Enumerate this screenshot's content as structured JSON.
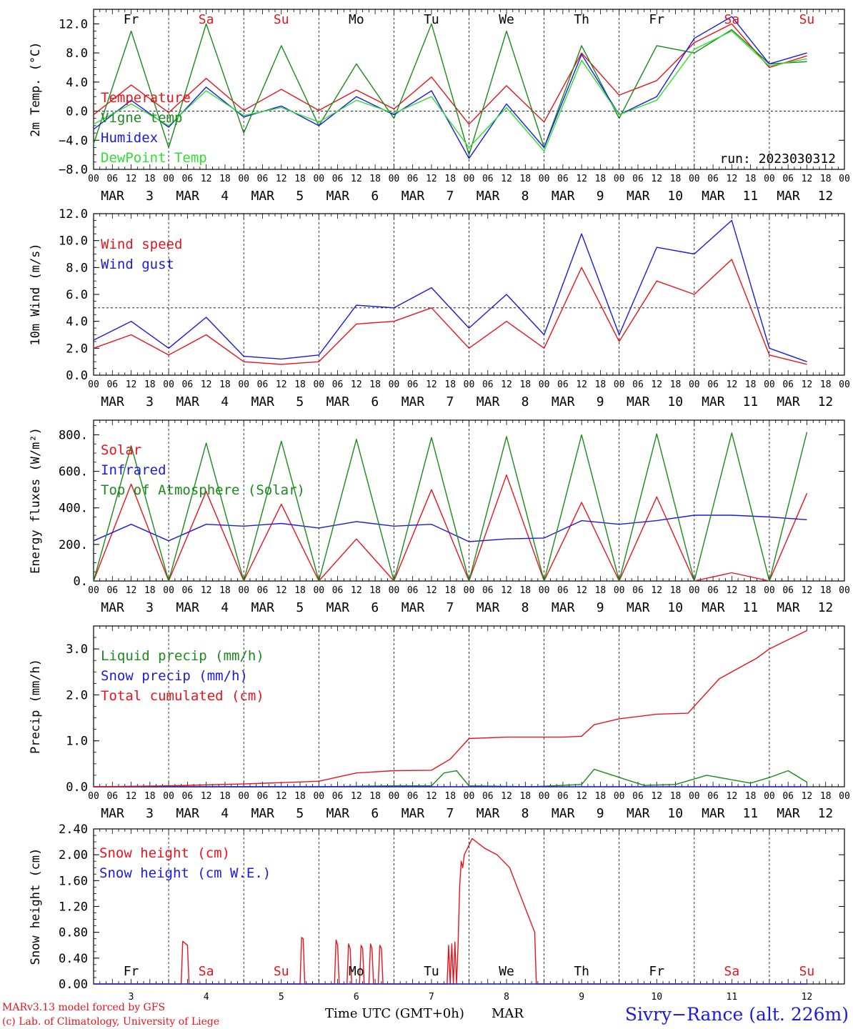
{
  "colors": {
    "red": "#e8141c",
    "green": "#1a8a1a",
    "blue": "#1a1ae0",
    "light_green": "#30e030",
    "black": "#000000",
    "weekend": "#e8141c",
    "weekday": "#000000"
  },
  "days": [
    "3",
    "4",
    "5",
    "6",
    "7",
    "8",
    "9",
    "10",
    "11",
    "12"
  ],
  "month": "MAR",
  "hour_ticks": [
    "00",
    "06",
    "12",
    "18"
  ],
  "hour_end": "00",
  "weekday_labels": [
    {
      "label": "Fr",
      "weekend": false
    },
    {
      "label": "Sa",
      "weekend": true
    },
    {
      "label": "Su",
      "weekend": true
    },
    {
      "label": "Mo",
      "weekend": false
    },
    {
      "label": "Tu",
      "weekend": false
    },
    {
      "label": "We",
      "weekend": false
    },
    {
      "label": "Th",
      "weekend": false
    },
    {
      "label": "Fr",
      "weekend": false
    },
    {
      "label": "Sa",
      "weekend": true
    },
    {
      "label": "Su",
      "weekend": true
    }
  ],
  "footer": {
    "credit1": "MARv3.13 model forced by GFS",
    "credit2": "(c) Lab. of Climatology, University of Liege",
    "xlabel": "Time UTC (GMT+0h)",
    "xmonth": "MAR",
    "station": "Sivry−Rance (alt. 226m)"
  },
  "chart_data": [
    {
      "type": "line",
      "ylabel": "2m Temp. (°C)",
      "ylim": [
        -8,
        14
      ],
      "yticks": [
        "12.0",
        "8.0",
        "4.0",
        "0.0",
        "−4.0",
        "−8.0"
      ],
      "ytick_values": [
        12,
        8,
        4,
        0,
        -4,
        -8
      ],
      "dashed_y": 0,
      "annotation": "run: 2023030312",
      "series": [
        {
          "name": "Temperature",
          "color": "red",
          "x": [
            0,
            12,
            24,
            36,
            48,
            60,
            72,
            84,
            96,
            108,
            120,
            132,
            144,
            156,
            168,
            180,
            192,
            204,
            216,
            228
          ],
          "values": [
            -0.5,
            3.6,
            -0.2,
            4.5,
            0.1,
            3.0,
            0.1,
            2.9,
            0.3,
            4.7,
            -1.8,
            3.5,
            -1.5,
            8.0,
            2.2,
            4.2,
            9.4,
            12.0,
            6.0,
            7.6
          ]
        },
        {
          "name": "Vigne temp",
          "color": "green",
          "x": [
            0,
            12,
            24,
            36,
            48,
            60,
            72,
            84,
            96,
            108,
            120,
            132,
            144,
            156,
            168,
            180,
            192,
            204,
            216,
            228
          ],
          "values": [
            -4.5,
            11.0,
            -5.0,
            12.0,
            -3.0,
            9.0,
            -2.0,
            6.5,
            -1.0,
            12.0,
            -6.0,
            11.0,
            -5.0,
            9.0,
            -1.0,
            9.0,
            8.0,
            11.2,
            6.5,
            6.8
          ]
        },
        {
          "name": "Humidex",
          "color": "blue",
          "x": [
            0,
            12,
            24,
            36,
            48,
            60,
            72,
            84,
            96,
            108,
            120,
            132,
            144,
            156,
            168,
            180,
            192,
            204,
            216,
            228
          ],
          "values": [
            -2.5,
            1.5,
            -2.2,
            3.3,
            -0.8,
            0.7,
            -2.0,
            2.0,
            -0.5,
            2.8,
            -6.5,
            1.0,
            -5.0,
            7.8,
            -0.5,
            2.0,
            10.0,
            13.0,
            6.5,
            8.0
          ]
        },
        {
          "name": "DewPoint Temp",
          "color": "light_green",
          "x": [
            0,
            12,
            24,
            36,
            48,
            60,
            72,
            84,
            96,
            108,
            120,
            132,
            144,
            156,
            168,
            180,
            192,
            204,
            216,
            228
          ],
          "values": [
            -1.8,
            1.0,
            -2.0,
            2.8,
            -0.6,
            0.5,
            -1.5,
            1.5,
            -0.3,
            2.0,
            -5.0,
            0.5,
            -5.5,
            7.0,
            -0.5,
            1.5,
            8.5,
            11.0,
            6.2,
            7.2
          ]
        }
      ]
    },
    {
      "type": "line",
      "ylabel": "10m Wind (m/s)",
      "ylim": [
        0,
        12
      ],
      "yticks": [
        "12.0",
        "10.0",
        "8.0",
        "6.0",
        "4.0",
        "2.0",
        "0.0"
      ],
      "ytick_values": [
        12,
        10,
        8,
        6,
        4,
        2,
        0
      ],
      "dashed_y": 5,
      "series": [
        {
          "name": "Wind speed",
          "color": "red",
          "x": [
            0,
            12,
            24,
            36,
            48,
            60,
            72,
            84,
            96,
            108,
            120,
            132,
            144,
            156,
            168,
            180,
            192,
            204,
            216,
            228
          ],
          "values": [
            2.0,
            3.0,
            1.5,
            3.0,
            1.0,
            0.8,
            1.0,
            3.8,
            4.0,
            5.0,
            2.0,
            4.0,
            2.0,
            8.0,
            2.5,
            7.0,
            6.0,
            8.6,
            1.5,
            0.8
          ]
        },
        {
          "name": "Wind gust",
          "color": "blue",
          "x": [
            0,
            12,
            24,
            36,
            48,
            60,
            72,
            84,
            96,
            108,
            120,
            132,
            144,
            156,
            168,
            180,
            192,
            204,
            216,
            228
          ],
          "values": [
            2.6,
            4.0,
            2.0,
            4.3,
            1.4,
            1.2,
            1.5,
            5.2,
            5.0,
            6.5,
            3.5,
            6.0,
            3.0,
            10.5,
            3.0,
            9.5,
            9.0,
            11.5,
            2.0,
            1.0
          ]
        }
      ]
    },
    {
      "type": "line",
      "ylabel": "Energy fluxes (W/m²)",
      "ylim": [
        0,
        880
      ],
      "yticks": [
        "800.",
        "600.",
        "400.",
        "200.",
        "0."
      ],
      "ytick_values": [
        800,
        600,
        400,
        200,
        0
      ],
      "series": [
        {
          "name": "Solar",
          "color": "red",
          "x": [
            0,
            12,
            24,
            36,
            48,
            60,
            72,
            84,
            96,
            108,
            120,
            132,
            144,
            156,
            168,
            180,
            192,
            204,
            216,
            228
          ],
          "values": [
            0,
            530,
            0,
            490,
            0,
            420,
            0,
            230,
            0,
            500,
            0,
            580,
            0,
            430,
            0,
            460,
            0,
            45,
            0,
            480
          ]
        },
        {
          "name": "Infrared",
          "color": "blue",
          "x": [
            0,
            12,
            24,
            36,
            48,
            60,
            72,
            84,
            96,
            108,
            120,
            132,
            144,
            156,
            168,
            180,
            192,
            204,
            216,
            228
          ],
          "values": [
            220,
            310,
            220,
            310,
            300,
            315,
            290,
            325,
            300,
            310,
            215,
            230,
            235,
            330,
            310,
            330,
            360,
            360,
            350,
            335
          ]
        },
        {
          "name": "Top of Atmosphere (Solar)",
          "color": "green",
          "x": [
            0,
            12,
            24,
            36,
            48,
            60,
            72,
            84,
            96,
            108,
            120,
            132,
            144,
            156,
            168,
            180,
            192,
            204,
            216,
            228
          ],
          "values": [
            0,
            740,
            0,
            755,
            0,
            765,
            0,
            775,
            0,
            785,
            0,
            790,
            0,
            800,
            0,
            805,
            0,
            810,
            0,
            815
          ]
        }
      ]
    },
    {
      "type": "line",
      "ylabel": "Precip (mm/h)",
      "ylim": [
        0,
        3.5
      ],
      "yticks": [
        "3.0",
        "2.0",
        "1.0",
        "0.0"
      ],
      "ytick_values": [
        3,
        2,
        1,
        0
      ],
      "series": [
        {
          "name": "Liquid precip (mm/h)",
          "color": "green",
          "x": [
            0,
            24,
            48,
            72,
            96,
            108,
            112,
            116,
            120,
            140,
            156,
            160,
            176,
            186,
            196,
            210,
            216,
            222,
            228
          ],
          "values": [
            0,
            0,
            0,
            0,
            0.02,
            0.02,
            0.3,
            0.35,
            0.02,
            0,
            0.05,
            0.38,
            0.03,
            0.05,
            0.25,
            0.08,
            0.2,
            0.35,
            0.1
          ]
        },
        {
          "name": "Snow precip (mm/h)",
          "color": "blue",
          "x": [
            0,
            228
          ],
          "values": [
            0,
            0
          ]
        },
        {
          "name": "Total cumulated (cm)",
          "color": "red",
          "x": [
            0,
            24,
            48,
            72,
            84,
            96,
            108,
            114,
            120,
            132,
            150,
            156,
            160,
            168,
            180,
            190,
            200,
            212,
            216,
            222,
            228
          ],
          "values": [
            0,
            0.02,
            0.06,
            0.12,
            0.3,
            0.35,
            0.36,
            0.6,
            1.05,
            1.08,
            1.08,
            1.1,
            1.35,
            1.48,
            1.58,
            1.6,
            2.35,
            2.8,
            3.0,
            3.2,
            3.4
          ]
        }
      ]
    },
    {
      "type": "line",
      "ylabel": "Snow height (cm)",
      "ylim": [
        0,
        2.4
      ],
      "yticks": [
        "2.40",
        "2.00",
        "1.60",
        "1.20",
        "0.80",
        "0.40",
        "0.00"
      ],
      "ytick_values": [
        2.4,
        2.0,
        1.6,
        1.2,
        0.8,
        0.4,
        0.0
      ],
      "series": [
        {
          "name": "Snow height (cm)",
          "color": "red",
          "x": [
            0,
            28,
            28.5,
            30,
            30.5,
            66,
            66.5,
            67,
            67.5,
            77,
            77.5,
            78,
            78.5,
            81,
            81.5,
            82,
            82.5,
            85,
            85.5,
            86,
            86.5,
            88,
            88.5,
            89,
            89.5,
            91,
            91.5,
            92,
            92.5,
            113,
            113.5,
            114,
            114.5,
            115,
            115.5,
            116,
            116.5,
            117,
            117.5,
            118,
            118.5,
            121,
            125,
            129,
            133,
            137,
            141,
            141.5,
            228
          ],
          "values": [
            0,
            0,
            0.66,
            0.6,
            0,
            0,
            0.72,
            0.7,
            0,
            0,
            0.68,
            0.6,
            0,
            0,
            0.62,
            0.55,
            0,
            0,
            0.6,
            0.55,
            0,
            0,
            0.62,
            0.55,
            0,
            0,
            0.6,
            0.55,
            0,
            0,
            0.6,
            0.0,
            0.62,
            0.0,
            0.65,
            0.0,
            0.6,
            1.5,
            1.9,
            1.8,
            2.0,
            2.25,
            2.1,
            2.0,
            1.8,
            1.3,
            0.8,
            0,
            0
          ]
        },
        {
          "name": "Snow height (cm W.E.)",
          "color": "blue",
          "x": [
            0,
            228
          ],
          "values": [
            0,
            0
          ]
        }
      ]
    }
  ]
}
